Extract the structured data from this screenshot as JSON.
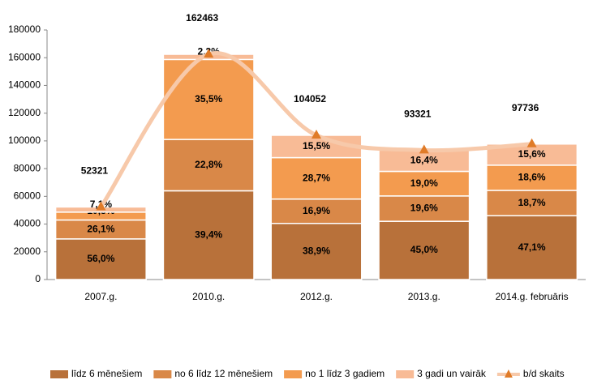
{
  "chart_data": {
    "type": "bar",
    "stacked": true,
    "categories": [
      "2007.g.",
      "2010.g.",
      "2012.g.",
      "2013.g.",
      "2014.g. februāris"
    ],
    "series": [
      {
        "name": "līdz 6 mēnešiem",
        "color": "#b8713a",
        "values": [
          56.0,
          39.4,
          38.9,
          45.0,
          47.1
        ],
        "value_labels": [
          "56,0%",
          "39,4%",
          "38,9%",
          "45,0%",
          "47,1%"
        ]
      },
      {
        "name": "no 6 līdz 12 mēnešiem",
        "color": "#d98848",
        "values": [
          26.1,
          22.8,
          16.9,
          19.6,
          18.7
        ],
        "value_labels": [
          "26,1%",
          "22,8%",
          "16,9%",
          "19,6%",
          "18,7%"
        ]
      },
      {
        "name": "no 1 līdz 3 gadiem",
        "color": "#f39b4f",
        "values": [
          10.8,
          35.5,
          28.7,
          19.0,
          18.6
        ],
        "value_labels": [
          "10,8%",
          "35,5%",
          "28,7%",
          "19,0%",
          "18,6%"
        ]
      },
      {
        "name": "3 gadi un vairāk",
        "color": "#f8bb96",
        "values": [
          7.1,
          2.3,
          15.5,
          16.4,
          15.6
        ],
        "value_labels": [
          "7,1%",
          "2,3%",
          "15,5%",
          "16,4%",
          "15,6%"
        ]
      },
      {
        "name": "b/d skaits",
        "type": "line",
        "color": "#f7c9aa",
        "marker_color": "#e07b28",
        "values": [
          52321,
          162463,
          104052,
          93321,
          97736
        ]
      }
    ],
    "ylim": [
      0,
      180000
    ],
    "yticks": [
      0,
      20000,
      40000,
      60000,
      80000,
      100000,
      120000,
      140000,
      160000,
      180000
    ],
    "legend": "bottom"
  }
}
